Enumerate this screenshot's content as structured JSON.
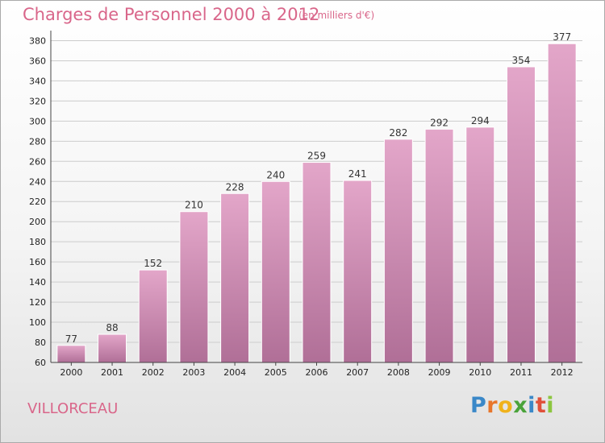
{
  "title": "Charges de Personnel 2000 à 2012",
  "subtitle": "(en milliers d'€)",
  "commune": "VILLORCEAU",
  "logo": {
    "letters": [
      "P",
      "r",
      "o",
      "x",
      "i",
      "t",
      "i"
    ],
    "colors": [
      "#3a88c8",
      "#e8762b",
      "#f0b21b",
      "#4aa33a",
      "#3a88c8",
      "#e0503a",
      "#8cc63f"
    ]
  },
  "colors": {
    "bar": "#d98fb5",
    "title": "#d9668a"
  },
  "chart_data": {
    "type": "bar",
    "categories": [
      "2000",
      "2001",
      "2002",
      "2003",
      "2004",
      "2005",
      "2006",
      "2007",
      "2008",
      "2009",
      "2010",
      "2011",
      "2012"
    ],
    "values": [
      77,
      88,
      152,
      210,
      228,
      240,
      259,
      241,
      282,
      292,
      294,
      354,
      377
    ],
    "yticks": [
      60,
      80,
      100,
      120,
      140,
      160,
      180,
      200,
      220,
      240,
      260,
      280,
      300,
      320,
      340,
      360,
      380
    ],
    "ylim": [
      60,
      390
    ],
    "grid": true
  }
}
